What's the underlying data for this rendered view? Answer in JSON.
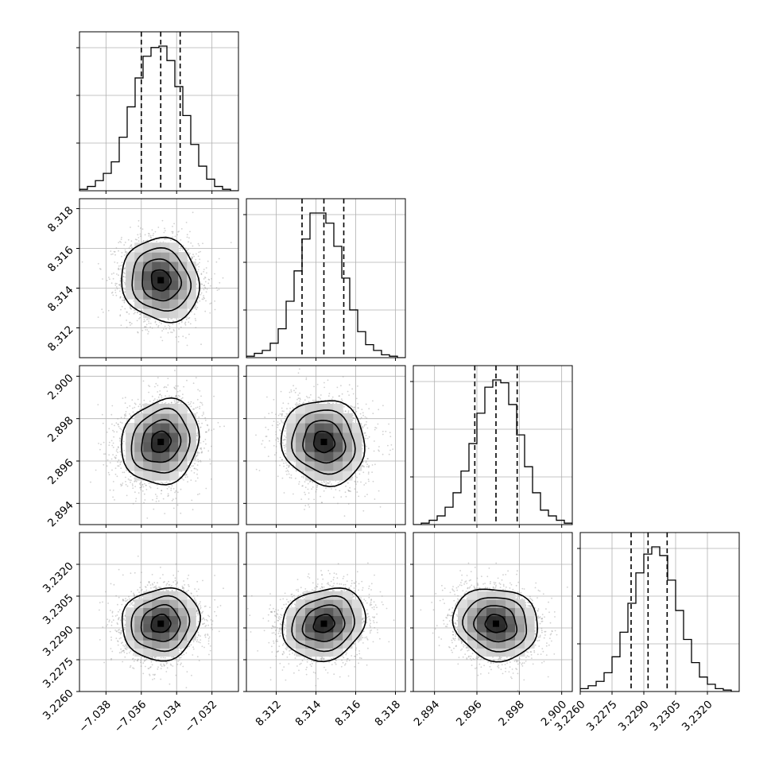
{
  "chart_data": {
    "type": "corner",
    "parameters": [
      {
        "range": [
          -7.0395,
          -7.0305
        ],
        "ticks": [
          -7.038,
          -7.036,
          -7.034,
          -7.032
        ],
        "tick_labels": [
          "−7.038",
          "−7.036",
          "−7.034",
          "−7.032"
        ],
        "quantiles": [
          -7.036,
          -7.0349,
          -7.0338
        ],
        "hist_edges": [
          -7.0395,
          -7.03905,
          -7.0386,
          -7.03815,
          -7.0377,
          -7.03725,
          -7.0368,
          -7.03635,
          -7.0359,
          -7.03545,
          -7.035,
          -7.03455,
          -7.0341,
          -7.03365,
          -7.0332,
          -7.03275,
          -7.0323,
          -7.03185,
          -7.0314,
          -7.03095,
          -7.0305
        ],
        "hist_counts": [
          0.01,
          0.03,
          0.07,
          0.12,
          0.2,
          0.37,
          0.58,
          0.78,
          0.93,
          0.99,
          1.0,
          0.9,
          0.72,
          0.52,
          0.32,
          0.17,
          0.08,
          0.03,
          0.01,
          0.0
        ]
      },
      {
        "range": [
          8.3105,
          8.3185
        ],
        "ticks": [
          8.312,
          8.314,
          8.316,
          8.318
        ],
        "tick_labels": [
          "8.312",
          "8.314",
          "8.316",
          "8.318"
        ],
        "quantiles": [
          8.3133,
          8.3144,
          8.3154
        ],
        "hist_edges": [
          8.3105,
          8.3109,
          8.3113,
          8.3117,
          8.3121,
          8.3125,
          8.3129,
          8.3133,
          8.3137,
          8.3141,
          8.3145,
          8.3149,
          8.3153,
          8.3157,
          8.3161,
          8.3165,
          8.3169,
          8.3173,
          8.3177,
          8.3181,
          8.3185
        ],
        "hist_counts": [
          0.01,
          0.03,
          0.05,
          0.1,
          0.2,
          0.39,
          0.6,
          0.82,
          1.0,
          1.0,
          0.93,
          0.77,
          0.55,
          0.33,
          0.18,
          0.09,
          0.05,
          0.02,
          0.01,
          0.0
        ]
      },
      {
        "range": [
          2.893,
          2.9005
        ],
        "ticks": [
          2.894,
          2.896,
          2.898,
          2.9
        ],
        "tick_labels": [
          "2.894",
          "2.896",
          "2.898",
          "2.900"
        ],
        "quantiles": [
          2.8959,
          2.8969,
          2.8979
        ],
        "hist_edges": [
          2.893,
          2.893375,
          2.89375,
          2.894125,
          2.8945,
          2.894875,
          2.89525,
          2.895625,
          2.896,
          2.896375,
          2.89675,
          2.897125,
          2.8975,
          2.897875,
          2.89825,
          2.898625,
          2.899,
          2.899375,
          2.89975,
          2.900125,
          2.9005
        ],
        "hist_counts": [
          0.0,
          0.01,
          0.03,
          0.06,
          0.12,
          0.22,
          0.37,
          0.56,
          0.77,
          0.95,
          1.0,
          0.98,
          0.83,
          0.62,
          0.4,
          0.22,
          0.1,
          0.06,
          0.03,
          0.01
        ]
      },
      {
        "range": [
          3.226,
          3.2335
        ],
        "ticks": [
          3.226,
          3.2275,
          3.229,
          3.2305,
          3.232
        ],
        "tick_labels": [
          "3.2260",
          "3.2275",
          "3.2290",
          "3.2305",
          "3.2320"
        ],
        "quantiles": [
          3.2284,
          3.2292,
          3.2301
        ],
        "hist_edges": [
          3.226,
          3.226375,
          3.22675,
          3.227125,
          3.2275,
          3.227875,
          3.22825,
          3.228625,
          3.229,
          3.229375,
          3.22975,
          3.230125,
          3.2305,
          3.230875,
          3.23125,
          3.231625,
          3.232,
          3.232375,
          3.23275,
          3.233125,
          3.2335
        ],
        "hist_counts": [
          0.02,
          0.04,
          0.07,
          0.13,
          0.24,
          0.41,
          0.61,
          0.82,
          0.95,
          1.0,
          0.94,
          0.77,
          0.56,
          0.36,
          0.2,
          0.1,
          0.05,
          0.02,
          0.01,
          0.0
        ]
      }
    ],
    "pair_correlations": [
      [
        0,
        0,
        0,
        0
      ],
      [
        -0.1,
        0,
        0,
        0
      ],
      [
        0.12,
        -0.08,
        0,
        0
      ],
      [
        0.08,
        0.15,
        -0.1,
        0
      ]
    ],
    "contour_sigma_levels": [
      0.5,
      1.0,
      1.5,
      2.0
    ],
    "colors": {
      "line": "#000000",
      "grid": "#b0b0b0",
      "points": "#bdbdbd"
    },
    "grid": true
  }
}
